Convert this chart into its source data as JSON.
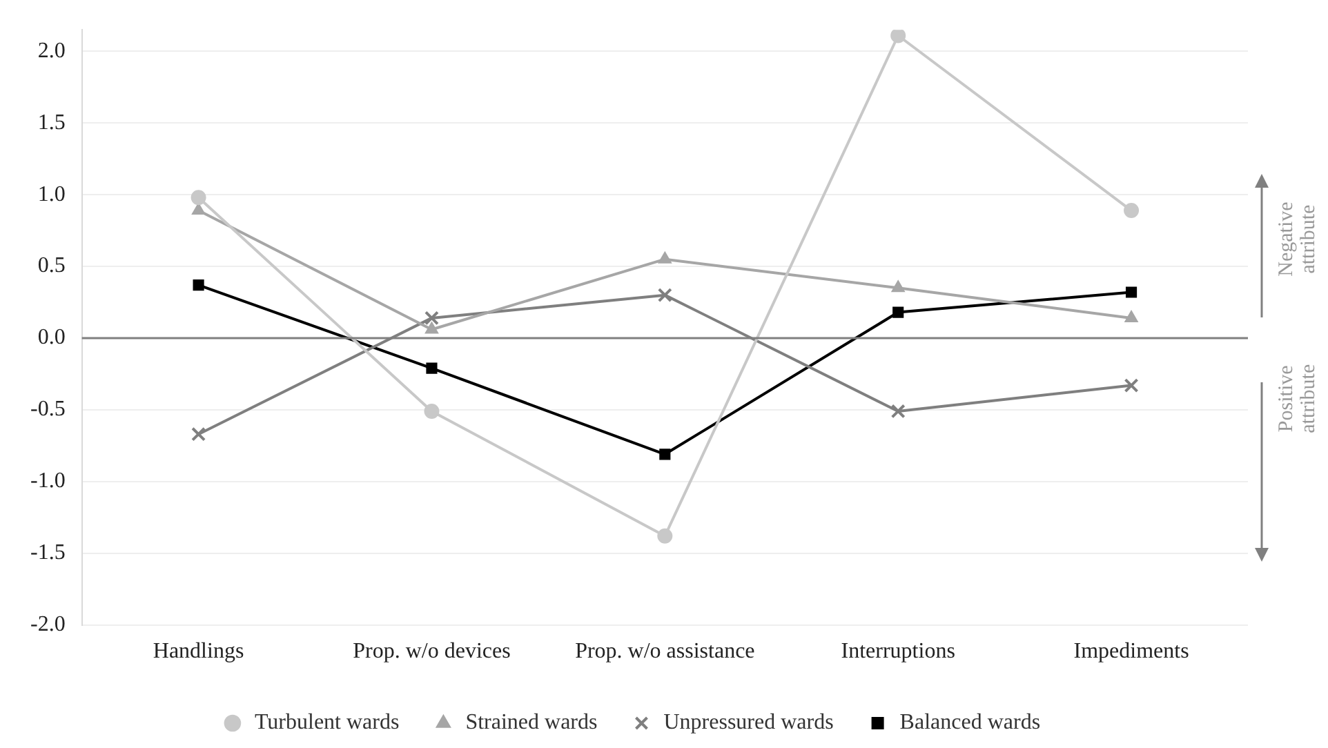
{
  "chart_data": {
    "type": "line",
    "categories": [
      "Handlings",
      "Prop. w/o devices",
      "Prop. w/o assistance",
      "Interruptions",
      "Impediments"
    ],
    "series": [
      {
        "name": "Turbulent wards",
        "color": "#c8c8c8",
        "marker": "circle",
        "values": [
          0.98,
          -0.51,
          -1.38,
          2.11,
          0.89
        ]
      },
      {
        "name": "Strained wards",
        "color": "#a6a6a6",
        "marker": "triangle",
        "values": [
          0.89,
          0.06,
          0.55,
          0.35,
          0.14
        ]
      },
      {
        "name": "Unpressured wards",
        "color": "#7f7f7f",
        "marker": "cross",
        "values": [
          -0.67,
          0.14,
          0.3,
          -0.51,
          -0.33
        ]
      },
      {
        "name": "Balanced wards",
        "color": "#000000",
        "marker": "square",
        "values": [
          0.37,
          -0.21,
          -0.81,
          0.18,
          0.32
        ]
      }
    ],
    "ylim": [
      -2.0,
      2.15
    ],
    "yticks": [
      {
        "value": -2,
        "label": "-2.0"
      },
      {
        "value": -1.5,
        "label": "-1.5"
      },
      {
        "value": -1,
        "label": "-1.0"
      },
      {
        "value": -0.5,
        "label": "-0.5"
      },
      {
        "value": 0,
        "label": "0.0"
      },
      {
        "value": 0.5,
        "label": "0.5"
      },
      {
        "value": 1,
        "label": "1.0"
      },
      {
        "value": 1.5,
        "label": "1.5"
      },
      {
        "value": 2,
        "label": "2.0"
      }
    ],
    "grid": "y",
    "legend": "bottom",
    "ref_lines": [
      {
        "axis": "y",
        "value": 0,
        "color": "#7f7f7f"
      }
    ],
    "annotations": [
      "Negative attribute",
      "Positive attribute"
    ]
  }
}
